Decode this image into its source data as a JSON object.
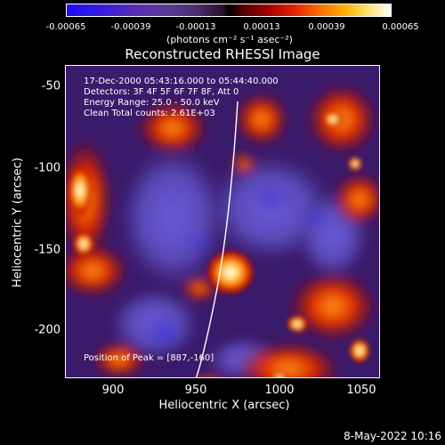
{
  "colorbar": {
    "ticks": [
      "-0.00065",
      "-0.00039",
      "-0.00013",
      "0.00013",
      "0.00039",
      "0.00065"
    ],
    "units": "(photons cm⁻² s⁻¹ asec⁻²)"
  },
  "plot": {
    "title": "Reconstructed RHESSI Image",
    "overlay": {
      "time_range": "17-Dec-2000 05:43:16.000 to 05:44:40.000",
      "detectors": "Detectors: 3F 4F 5F 6F 7F 8F, Att 0",
      "energy_range": "Energy Range: 25.0 - 50.0 keV",
      "clean_counts": "Clean    Total counts: 2.61E+03",
      "peak": "Position of Peak = [887,-160]"
    },
    "x_axis": {
      "label": "Heliocentric X (arcsec)",
      "ticks": [
        "900",
        "950",
        "1000",
        "1050"
      ]
    },
    "y_axis": {
      "label": "Heliocentric Y (arcsec)",
      "ticks": [
        "-50",
        "-100",
        "-150",
        "-200"
      ]
    }
  },
  "footer": {
    "date": "8-May-2022 10:16"
  }
}
